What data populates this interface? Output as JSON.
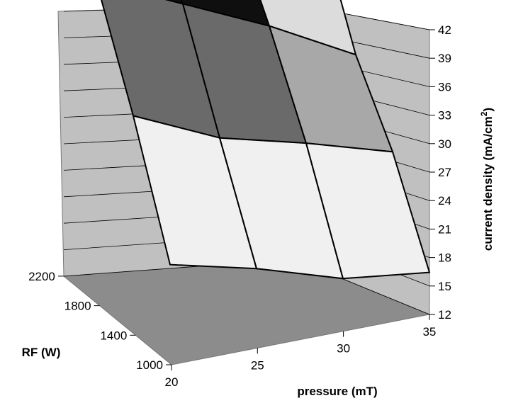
{
  "chart_data": {
    "type": "surface3d",
    "z_axis": {
      "label": "current density (mA/cm²)",
      "label_text": "current density (mA/cm",
      "label_sup": "2",
      "label_close": ")",
      "ticks": [
        "12",
        "15",
        "18",
        "21",
        "24",
        "27",
        "30",
        "33",
        "36",
        "39",
        "42"
      ],
      "range": [
        12,
        42
      ]
    },
    "x_axis": {
      "label": "pressure (mT)",
      "ticks": [
        "20",
        "25",
        "30",
        "35"
      ],
      "values": [
        20,
        25,
        30,
        35
      ]
    },
    "y_axis": {
      "label": "RF (W)",
      "ticks": [
        "1000",
        "1400",
        "1800",
        "2200"
      ],
      "values": [
        1000,
        1400,
        1800,
        2200
      ]
    },
    "z_values": [
      [
        15.3,
        15.0,
        13.8,
        15.0
      ],
      [
        29.0,
        26.0,
        25.5,
        24.5
      ],
      [
        40.5,
        37.5,
        34.5,
        30.5
      ],
      [
        40.0,
        41.0,
        42.0,
        42.0
      ]
    ],
    "band_colors": [
      "#ffffff",
      "#f0f0f0",
      "#2a2a2a",
      "#a8a8a8",
      "#6a6a6a",
      "#dcdcdc",
      "#0f0f0f"
    ],
    "grid": true,
    "floor_color": "#8c8c8c",
    "wall_color": "#c0c0c0"
  }
}
